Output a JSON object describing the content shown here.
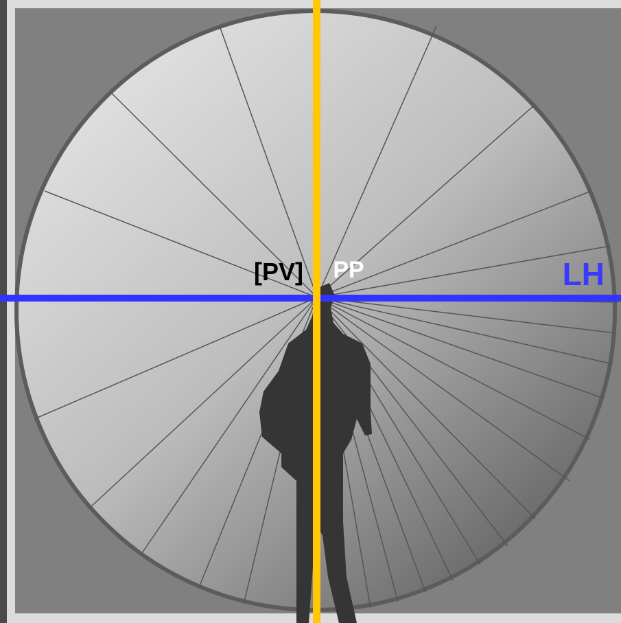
{
  "labels": {
    "pv": "[PV]",
    "pp": "PP",
    "lh": "LH"
  }
}
